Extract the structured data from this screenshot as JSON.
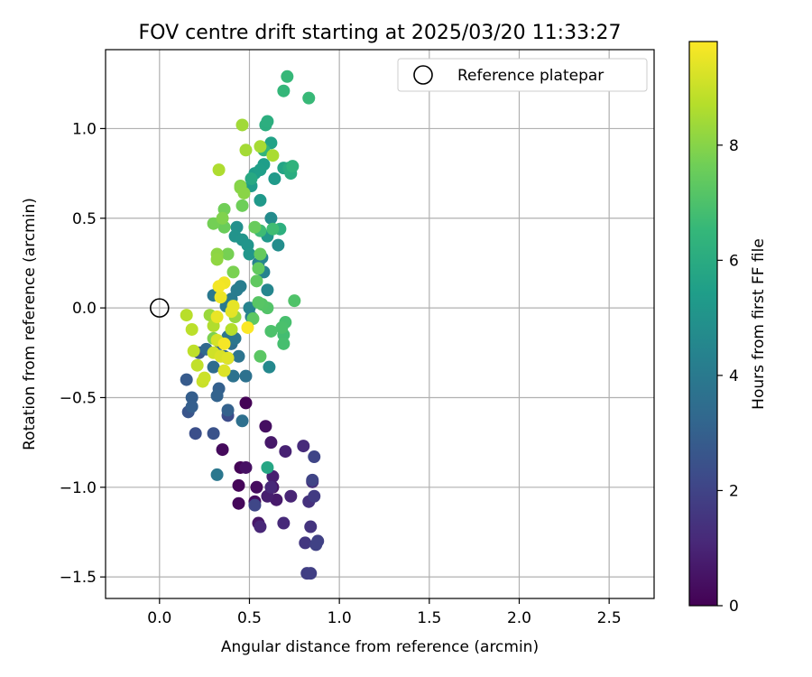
{
  "chart_data": {
    "type": "scatter",
    "title": "FOV centre drift starting at 2025/03/20 11:33:27",
    "xlabel": "Angular distance from reference (arcmin)",
    "ylabel": "Rotation from reference (arcmin)",
    "xlim": [
      -0.3,
      2.75
    ],
    "ylim": [
      -1.62,
      1.44
    ],
    "x_ticks": [
      0.0,
      0.5,
      1.0,
      1.5,
      2.0,
      2.5
    ],
    "x_tick_labels": [
      "0.0",
      "0.5",
      "1.0",
      "1.5",
      "2.0",
      "2.5"
    ],
    "y_ticks": [
      -1.5,
      -1.0,
      -0.5,
      0.0,
      0.5,
      1.0
    ],
    "y_tick_labels": [
      "−1.5",
      "−1.0",
      "−0.5",
      "0.0",
      "0.5",
      "1.0"
    ],
    "grid": true,
    "legend": {
      "placement": "top-right",
      "entries": [
        {
          "label": "Reference platepar",
          "marker": "open-circle"
        }
      ]
    },
    "reference_point": {
      "x": 0.0,
      "y": 0.0
    },
    "colorbar": {
      "label": "Hours from first FF file",
      "colormap": "viridis",
      "range": [
        0,
        9.8
      ],
      "ticks": [
        0,
        2,
        4,
        6,
        8
      ],
      "tick_labels": [
        "0",
        "2",
        "4",
        "6",
        "8"
      ]
    },
    "colormap_stops": [
      "#440154",
      "#482878",
      "#3e4989",
      "#31688e",
      "#26828e",
      "#1f9e89",
      "#35b779",
      "#6ece58",
      "#b5de2b",
      "#fde725"
    ],
    "series": [
      {
        "points": [
          [
            0.48,
            -0.53,
            0.05
          ],
          [
            0.45,
            -0.89,
            0.1
          ],
          [
            0.44,
            -0.99,
            0.15
          ],
          [
            0.44,
            -1.09,
            0.2
          ],
          [
            0.35,
            -0.79,
            0.25
          ],
          [
            0.54,
            -1.0,
            0.3
          ],
          [
            0.53,
            -1.08,
            0.35
          ],
          [
            0.59,
            -0.66,
            0.4
          ],
          [
            0.48,
            -0.89,
            0.45
          ],
          [
            0.63,
            -1.0,
            0.5
          ],
          [
            0.55,
            -1.2,
            0.6
          ],
          [
            0.62,
            -0.75,
            0.65
          ],
          [
            0.65,
            -1.07,
            0.7
          ],
          [
            0.6,
            -1.05,
            0.8
          ],
          [
            0.63,
            -0.94,
            0.85
          ],
          [
            0.7,
            -0.8,
            0.9
          ],
          [
            0.73,
            -1.05,
            1.0
          ],
          [
            0.56,
            -1.22,
            1.05
          ],
          [
            0.62,
            -1.0,
            1.1
          ],
          [
            0.69,
            -1.2,
            1.15
          ],
          [
            0.8,
            -0.77,
            1.2
          ],
          [
            0.85,
            -0.97,
            1.3
          ],
          [
            0.83,
            -1.08,
            1.4
          ],
          [
            0.84,
            -1.22,
            1.5
          ],
          [
            0.81,
            -1.31,
            1.6
          ],
          [
            0.86,
            -1.05,
            1.7
          ],
          [
            0.82,
            -1.48,
            1.8
          ],
          [
            0.84,
            -1.48,
            1.85
          ],
          [
            0.88,
            -1.3,
            1.9
          ],
          [
            0.87,
            -1.32,
            1.95
          ],
          [
            0.85,
            -0.96,
            2.0
          ],
          [
            0.86,
            -0.83,
            2.05
          ],
          [
            0.53,
            -1.1,
            2.1
          ],
          [
            0.38,
            -0.6,
            2.3
          ],
          [
            0.2,
            -0.7,
            2.4
          ],
          [
            0.3,
            -0.7,
            2.5
          ],
          [
            0.16,
            -0.58,
            2.6
          ],
          [
            0.22,
            -0.25,
            2.7
          ],
          [
            0.15,
            -0.4,
            2.8
          ],
          [
            0.18,
            -0.5,
            2.9
          ],
          [
            0.18,
            -0.55,
            2.95
          ],
          [
            0.33,
            -0.45,
            3.0
          ],
          [
            0.38,
            -0.57,
            3.05
          ],
          [
            0.32,
            -0.49,
            3.1
          ],
          [
            0.34,
            -0.2,
            3.2
          ],
          [
            0.26,
            -0.23,
            3.3
          ],
          [
            0.36,
            -0.27,
            3.4
          ],
          [
            0.3,
            -0.33,
            3.45
          ],
          [
            0.38,
            -0.28,
            3.5
          ],
          [
            0.4,
            -0.2,
            3.55
          ],
          [
            0.46,
            -0.63,
            3.6
          ],
          [
            0.48,
            -0.38,
            3.65
          ],
          [
            0.41,
            -0.38,
            3.7
          ],
          [
            0.44,
            -0.27,
            3.75
          ],
          [
            0.38,
            -0.16,
            3.8
          ],
          [
            0.42,
            -0.17,
            3.85
          ],
          [
            0.32,
            -0.93,
            3.9
          ],
          [
            0.3,
            0.07,
            3.95
          ],
          [
            0.37,
            0.01,
            4.0
          ],
          [
            0.4,
            0.05,
            4.05
          ],
          [
            0.43,
            0.1,
            4.1
          ],
          [
            0.45,
            0.12,
            4.15
          ],
          [
            0.51,
            -0.05,
            4.2
          ],
          [
            0.55,
            0.25,
            4.3
          ],
          [
            0.58,
            0.2,
            4.35
          ],
          [
            0.5,
            0.0,
            4.4
          ],
          [
            0.57,
            0.28,
            4.45
          ],
          [
            0.6,
            0.1,
            4.5
          ],
          [
            0.61,
            -0.33,
            4.6
          ],
          [
            0.62,
            0.5,
            4.7
          ],
          [
            0.66,
            0.35,
            4.8
          ],
          [
            0.43,
            0.45,
            4.9
          ],
          [
            0.42,
            0.4,
            5.0
          ],
          [
            0.46,
            0.38,
            5.05
          ],
          [
            0.49,
            0.35,
            5.1
          ],
          [
            0.5,
            0.3,
            5.15
          ],
          [
            0.6,
            0.4,
            5.2
          ],
          [
            0.56,
            0.6,
            5.25
          ],
          [
            0.64,
            0.72,
            5.3
          ],
          [
            0.51,
            0.68,
            5.35
          ],
          [
            0.53,
            0.75,
            5.4
          ],
          [
            0.58,
            0.8,
            5.45
          ],
          [
            0.56,
            0.77,
            5.5
          ],
          [
            0.62,
            0.92,
            5.6
          ],
          [
            0.69,
            0.78,
            5.7
          ],
          [
            0.6,
            -0.89,
            5.8
          ],
          [
            0.51,
            0.72,
            5.9
          ],
          [
            0.72,
            0.78,
            6.0
          ],
          [
            0.73,
            0.75,
            6.05
          ],
          [
            0.59,
            1.02,
            6.1
          ],
          [
            0.6,
            1.04,
            6.15
          ],
          [
            0.67,
            0.44,
            6.2
          ],
          [
            0.74,
            0.79,
            6.3
          ],
          [
            0.58,
            0.88,
            6.4
          ],
          [
            0.69,
            1.21,
            6.5
          ],
          [
            0.71,
            1.29,
            6.55
          ],
          [
            0.83,
            1.17,
            6.6
          ],
          [
            0.56,
            0.43,
            6.7
          ],
          [
            0.63,
            0.44,
            6.75
          ],
          [
            0.69,
            -0.15,
            6.8
          ],
          [
            0.69,
            -0.2,
            6.85
          ],
          [
            0.7,
            -0.08,
            6.9
          ],
          [
            0.68,
            -0.11,
            6.95
          ],
          [
            0.62,
            -0.13,
            7.0
          ],
          [
            0.75,
            0.04,
            7.05
          ],
          [
            0.6,
            0.0,
            7.1
          ],
          [
            0.57,
            0.02,
            7.15
          ],
          [
            0.55,
            0.03,
            7.2
          ],
          [
            0.56,
            -0.27,
            7.25
          ],
          [
            0.52,
            -0.06,
            7.3
          ],
          [
            0.54,
            0.15,
            7.35
          ],
          [
            0.55,
            0.22,
            7.4
          ],
          [
            0.56,
            0.3,
            7.45
          ],
          [
            0.53,
            0.45,
            7.5
          ],
          [
            0.36,
            0.45,
            7.55
          ],
          [
            0.46,
            0.57,
            7.6
          ],
          [
            0.36,
            0.55,
            7.65
          ],
          [
            0.3,
            0.47,
            7.7
          ],
          [
            0.38,
            0.3,
            7.75
          ],
          [
            0.41,
            0.2,
            7.8
          ],
          [
            0.3,
            -0.17,
            7.85
          ],
          [
            0.35,
            0.5,
            7.9
          ],
          [
            0.45,
            0.68,
            7.95
          ],
          [
            0.45,
            0.67,
            8.0
          ],
          [
            0.47,
            0.64,
            8.05
          ],
          [
            0.32,
            0.3,
            8.1
          ],
          [
            0.32,
            0.27,
            8.15
          ],
          [
            0.42,
            -0.05,
            8.2
          ],
          [
            0.28,
            -0.04,
            8.3
          ],
          [
            0.46,
            1.02,
            8.4
          ],
          [
            0.48,
            0.88,
            8.45
          ],
          [
            0.56,
            0.9,
            8.5
          ],
          [
            0.63,
            0.85,
            8.55
          ],
          [
            0.33,
            0.77,
            8.6
          ],
          [
            0.3,
            -0.1,
            8.65
          ],
          [
            0.4,
            -0.12,
            8.7
          ],
          [
            0.15,
            -0.04,
            8.75
          ],
          [
            0.18,
            -0.12,
            8.8
          ],
          [
            0.19,
            -0.24,
            8.85
          ],
          [
            0.21,
            -0.32,
            8.9
          ],
          [
            0.24,
            -0.41,
            9.0
          ],
          [
            0.25,
            -0.39,
            9.05
          ],
          [
            0.3,
            -0.25,
            9.1
          ],
          [
            0.32,
            -0.18,
            9.2
          ],
          [
            0.34,
            -0.27,
            9.25
          ],
          [
            0.36,
            -0.35,
            9.3
          ],
          [
            0.38,
            -0.28,
            9.35
          ],
          [
            0.4,
            -0.02,
            9.4
          ],
          [
            0.41,
            0.01,
            9.45
          ],
          [
            0.32,
            -0.05,
            9.5
          ],
          [
            0.34,
            0.06,
            9.55
          ],
          [
            0.36,
            0.14,
            9.6
          ],
          [
            0.33,
            0.12,
            9.65
          ],
          [
            0.36,
            -0.2,
            9.7
          ],
          [
            0.49,
            -0.11,
            9.75
          ]
        ]
      }
    ]
  }
}
